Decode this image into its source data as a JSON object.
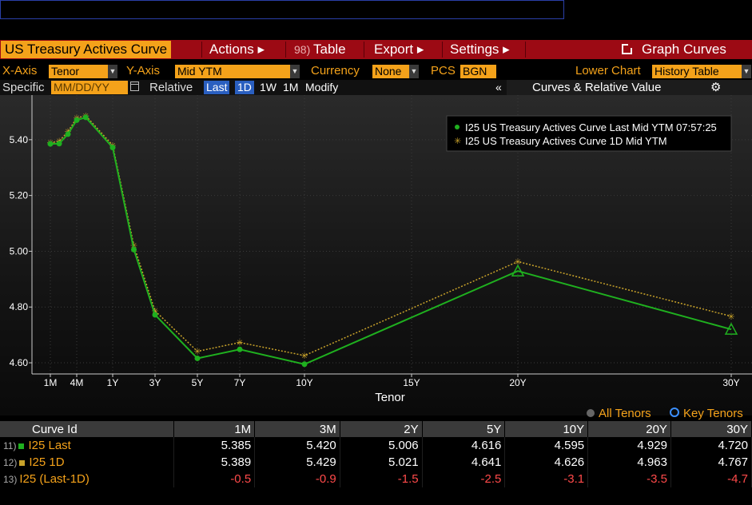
{
  "toolbar": {
    "title": "US Treasury Actives Curve",
    "actions": "Actions ▸",
    "table_num": "98)",
    "table": "Table",
    "export": "Export ▸",
    "settings": "Settings ▸",
    "graph_curves": "Graph Curves"
  },
  "controls": {
    "xaxis_label": "X-Axis",
    "xaxis_value": "Tenor",
    "yaxis_label": "Y-Axis",
    "yaxis_value": "Mid YTM",
    "currency_label": "Currency",
    "currency_value": "None",
    "pcs_label": "PCS",
    "pcs_value": "BGN",
    "lower_chart_label": "Lower Chart",
    "lower_chart_value": "History Table",
    "specific_label": "Specific",
    "date_placeholder": "MM/DD/YY",
    "relative_label": "Relative",
    "btn_last": "Last",
    "btn_1d": "1D",
    "btn_1w": "1W",
    "btn_1m": "1M",
    "btn_modify": "Modify",
    "collapse": "«",
    "panel_title": "Curves & Relative Value"
  },
  "colors": {
    "accent": "#f4a21a",
    "title_bar": "#9c0a14",
    "last": "#1fb01f",
    "oneday": "#c8a22a",
    "negative": "#ff4a4a"
  },
  "chart_data": {
    "type": "line",
    "xlabel": "Tenor",
    "ylabel": "",
    "ylim": [
      4.56,
      5.56
    ],
    "yticks": [
      4.6,
      4.8,
      5.0,
      5.2,
      5.4
    ],
    "ytick_labels": [
      "4.60",
      "4.80",
      "5.00",
      "5.20",
      "5.40"
    ],
    "xticks": [
      {
        "label": "1M",
        "t": 0.083
      },
      {
        "label": "4M",
        "t": 0.333
      },
      {
        "label": "1Y",
        "t": 1
      },
      {
        "label": "3Y",
        "t": 3
      },
      {
        "label": "5Y",
        "t": 5
      },
      {
        "label": "7Y",
        "t": 7
      },
      {
        "label": "10Y",
        "t": 10
      },
      {
        "label": "15Y",
        "t": 15
      },
      {
        "label": "20Y",
        "t": 20
      },
      {
        "label": "30Y",
        "t": 30
      }
    ],
    "grid": true,
    "legend_position": "top-right",
    "series": [
      {
        "name": "I25 US Treasury Actives Curve Last Mid YTM 07:57:25",
        "color": "#1fb01f",
        "points": [
          {
            "t": 0.083,
            "y": 5.385
          },
          {
            "t": 0.167,
            "y": 5.386
          },
          {
            "t": 0.25,
            "y": 5.42
          },
          {
            "t": 0.333,
            "y": 5.47
          },
          {
            "t": 0.5,
            "y": 5.48
          },
          {
            "t": 1,
            "y": 5.372
          },
          {
            "t": 2,
            "y": 5.006
          },
          {
            "t": 3,
            "y": 4.772
          },
          {
            "t": 5,
            "y": 4.616
          },
          {
            "t": 7,
            "y": 4.648
          },
          {
            "t": 10,
            "y": 4.595
          },
          {
            "t": 20,
            "y": 4.929
          },
          {
            "t": 30,
            "y": 4.72
          }
        ]
      },
      {
        "name": "I25 US Treasury Actives Curve 1D Mid YTM",
        "color": "#c8a22a",
        "points": [
          {
            "t": 0.083,
            "y": 5.389
          },
          {
            "t": 0.167,
            "y": 5.395
          },
          {
            "t": 0.25,
            "y": 5.429
          },
          {
            "t": 0.333,
            "y": 5.478
          },
          {
            "t": 0.5,
            "y": 5.486
          },
          {
            "t": 1,
            "y": 5.38
          },
          {
            "t": 2,
            "y": 5.021
          },
          {
            "t": 3,
            "y": 4.786
          },
          {
            "t": 5,
            "y": 4.641
          },
          {
            "t": 7,
            "y": 4.673
          },
          {
            "t": 10,
            "y": 4.626
          },
          {
            "t": 20,
            "y": 4.963
          },
          {
            "t": 30,
            "y": 4.767
          }
        ]
      }
    ]
  },
  "table": {
    "all_tenors": "All Tenors",
    "key_tenors": "Key Tenors",
    "columns": [
      "Curve Id",
      "1M",
      "3M",
      "2Y",
      "5Y",
      "10Y",
      "20Y",
      "30Y"
    ],
    "rows": [
      {
        "num": "11)",
        "id": "I25 Last",
        "values": [
          "5.385",
          "5.420",
          "5.006",
          "4.616",
          "4.595",
          "4.929",
          "4.720"
        ]
      },
      {
        "num": "12)",
        "id": "I25 1D",
        "values": [
          "5.389",
          "5.429",
          "5.021",
          "4.641",
          "4.626",
          "4.963",
          "4.767"
        ]
      },
      {
        "num": "13)",
        "id": "I25 (Last-1D)",
        "values": [
          "-0.5",
          "-0.9",
          "-1.5",
          "-2.5",
          "-3.1",
          "-3.5",
          "-4.7"
        ]
      }
    ]
  }
}
